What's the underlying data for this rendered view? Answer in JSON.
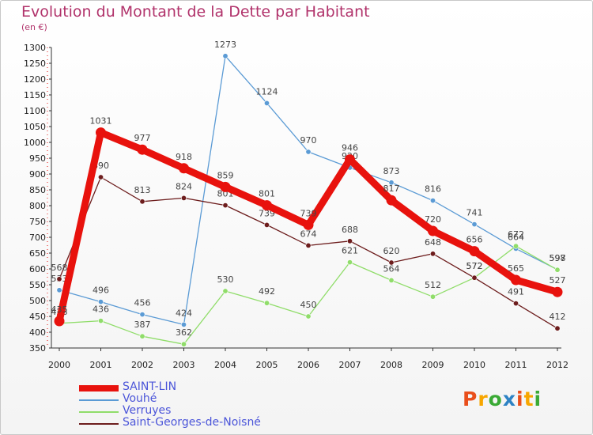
{
  "header": {
    "title": "Evolution du Montant de la Dette par Habitant",
    "subtitle": "(en €)"
  },
  "logo": {
    "text": "Proxiti",
    "colors": [
      "#e94e1b",
      "#f7a600",
      "#3aaa35",
      "#2d82c4",
      "#e94e1b",
      "#f7a600",
      "#3aaa35"
    ]
  },
  "chart_data": {
    "type": "line",
    "x": [
      "2000",
      "2001",
      "2002",
      "2003",
      "2004",
      "2005",
      "2006",
      "2007",
      "2008",
      "2009",
      "2010",
      "2011",
      "2012"
    ],
    "ylim": [
      350,
      1300
    ],
    "yticks": [
      350,
      400,
      450,
      500,
      550,
      600,
      650,
      700,
      750,
      800,
      850,
      900,
      950,
      1000,
      1050,
      1100,
      1150,
      1200,
      1250,
      1300
    ],
    "grid": false,
    "legend_position": "bottom-left",
    "series": [
      {
        "name": "Vouhé",
        "color": "#5b9bd5",
        "values": [
          533,
          496,
          456,
          424,
          1273,
          1124,
          970,
          920,
          873,
          816,
          741,
          664,
          598
        ],
        "labels": [
          "533",
          "496",
          "456",
          "424",
          "1273",
          "1124",
          "970",
          "920",
          "873",
          "816",
          "741",
          "664",
          "598"
        ]
      },
      {
        "name": "Verruyes",
        "color": "#90dd6a",
        "values": [
          428,
          436,
          387,
          362,
          530,
          492,
          450,
          621,
          564,
          512,
          572,
          672,
          597
        ],
        "labels": [
          "428",
          "436",
          "387",
          "362",
          "530",
          "492",
          "450",
          "621",
          "564",
          "512",
          "572",
          "672",
          "597"
        ]
      },
      {
        "name": "Saint-Georges-de-Noisné",
        "color": "#6d1d1d",
        "values": [
          568,
          890,
          813,
          824,
          801,
          739,
          674,
          688,
          620,
          648,
          572,
          491,
          412
        ],
        "labels": [
          "568",
          "890",
          "813",
          "824",
          "801",
          "739",
          "674",
          "688",
          "620",
          "648",
          "572",
          "491",
          "412"
        ]
      },
      {
        "name": "SAINT-LIN",
        "color": "#e8120d",
        "values": [
          435,
          1031,
          977,
          918,
          859,
          801,
          739,
          946,
          817,
          720,
          656,
          565,
          527
        ],
        "labels": [
          "435",
          "1031",
          "977",
          "918",
          "859",
          "801",
          "739",
          "946",
          "817",
          "720",
          "656",
          "565",
          "527"
        ]
      }
    ]
  },
  "legend": [
    {
      "label": "SAINT-LIN",
      "color": "#e8120d"
    },
    {
      "label": "Vouhé",
      "color": "#5b9bd5"
    },
    {
      "label": "Verruyes",
      "color": "#90dd6a"
    },
    {
      "label": "Saint-Georges-de-Noisné",
      "color": "#6d1d1d"
    }
  ]
}
